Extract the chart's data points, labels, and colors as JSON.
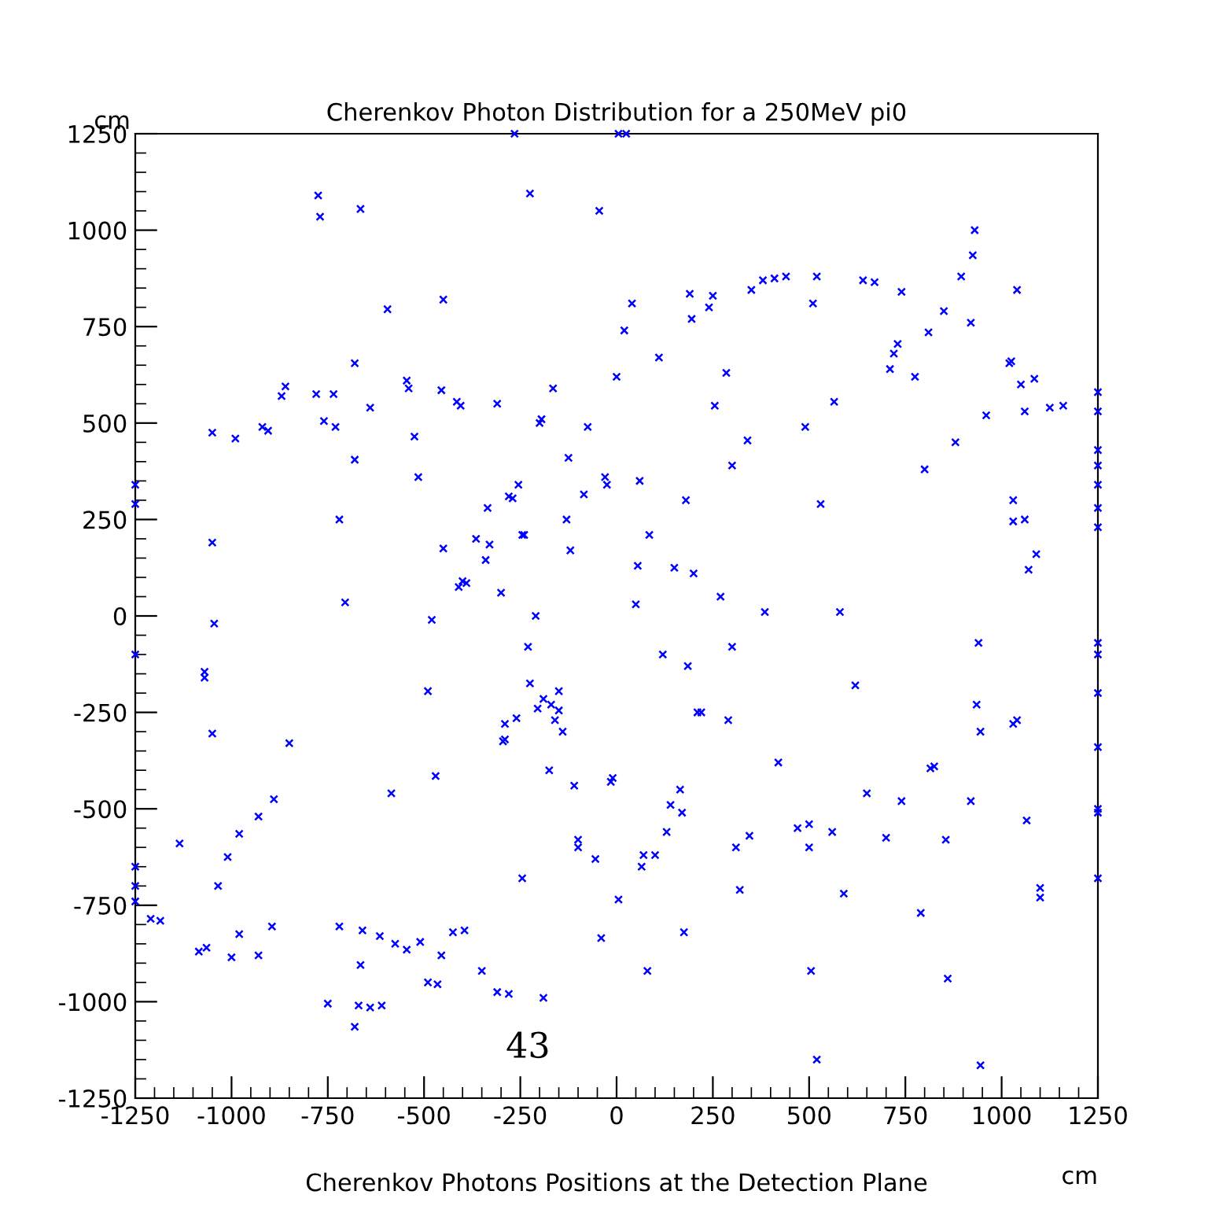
{
  "chart_data": {
    "type": "scatter",
    "title": "Cherenkov Photon Distribution for a 250MeV pi0",
    "xlabel": "Cherenkov Photons Positions at the Detection Plane",
    "ylabel": "cm",
    "annotations": [
      "cm",
      "43"
    ],
    "marker": "cross",
    "grid": false,
    "legend": false,
    "xlim": [
      -1250,
      1250
    ],
    "ylim": [
      -1250,
      1250
    ],
    "xticks": [
      -1250,
      -1000,
      -750,
      -500,
      -250,
      0,
      250,
      500,
      750,
      1000,
      1250
    ],
    "yticks": [
      -1250,
      -1000,
      -750,
      -500,
      -250,
      0,
      250,
      500,
      750,
      1000,
      1250
    ],
    "series": [
      {
        "color": "#0000ff",
        "x": [
          -775,
          -770,
          -665,
          -595,
          -450,
          -225,
          -45,
          -545,
          -540,
          -525,
          -515,
          -455,
          -415,
          -405,
          -860,
          -870,
          -920,
          -905,
          -990,
          -1050,
          -780,
          -760,
          -735,
          -730,
          -680,
          -680,
          -640,
          -720,
          -705,
          -1050,
          -1045,
          -1050,
          -1070,
          -1070,
          -1035,
          -1010,
          -980,
          -930,
          -890,
          -850,
          -1135,
          -1085,
          -1065,
          -1000,
          -980,
          -930,
          -895,
          -1210,
          -1185,
          -750,
          -720,
          -680,
          -670,
          -660,
          -665,
          -640,
          -615,
          -610,
          -575,
          -545,
          -510,
          -490,
          -465,
          -455,
          -425,
          -395,
          -350,
          -310,
          -280,
          -245,
          -190,
          -585,
          -490,
          -480,
          -470,
          -450,
          -410,
          -400,
          -390,
          -365,
          -340,
          -335,
          -330,
          -310,
          -300,
          -290,
          -290,
          -295,
          -280,
          -270,
          -260,
          -255,
          -245,
          -240,
          -230,
          -225,
          -210,
          -205,
          -200,
          -195,
          -190,
          -175,
          -170,
          -165,
          -160,
          -150,
          -150,
          -140,
          -130,
          -125,
          -120,
          -110,
          -100,
          -100,
          -85,
          -75,
          -55,
          -40,
          -30,
          -25,
          -15,
          -10,
          0,
          5,
          20,
          40,
          50,
          55,
          60,
          65,
          70,
          80,
          85,
          100,
          110,
          120,
          130,
          140,
          150,
          165,
          170,
          175,
          180,
          185,
          190,
          195,
          200,
          210,
          220,
          240,
          250,
          255,
          270,
          285,
          290,
          300,
          300,
          310,
          320,
          340,
          345,
          350,
          380,
          385,
          410,
          420,
          440,
          470,
          490,
          500,
          500,
          505,
          510,
          520,
          520,
          530,
          560,
          565,
          580,
          590,
          620,
          640,
          650,
          670,
          700,
          710,
          720,
          730,
          740,
          740,
          775,
          790,
          800,
          810,
          815,
          825,
          850,
          855,
          860,
          880,
          895,
          920,
          920,
          925,
          930,
          935,
          940,
          945,
          945,
          960,
          1020,
          1025,
          1030,
          1030,
          1030,
          1040,
          1040,
          1050,
          1060,
          1060,
          1065,
          1070,
          1085,
          1090,
          1100,
          1100,
          1125,
          1160,
          1250,
          1250,
          1250,
          1250,
          1250,
          1250,
          1250,
          1250,
          1250,
          1250,
          1250,
          1250,
          1250,
          1250,
          -1250,
          -1250,
          -1250,
          -1250,
          -1250,
          -1250,
          -265,
          5,
          25
        ],
        "values": [
          1090,
          1035,
          1055,
          795,
          820,
          1095,
          1050,
          610,
          590,
          465,
          360,
          585,
          555,
          545,
          595,
          570,
          490,
          480,
          460,
          475,
          575,
          505,
          575,
          490,
          655,
          405,
          540,
          250,
          35,
          190,
          -20,
          -305,
          -145,
          -160,
          -700,
          -625,
          -565,
          -520,
          -475,
          -330,
          -590,
          -870,
          -860,
          -885,
          -825,
          -880,
          -805,
          -785,
          -790,
          -1005,
          -805,
          -1065,
          -1010,
          -815,
          -905,
          -1015,
          -830,
          -1010,
          -850,
          -865,
          -845,
          -950,
          -955,
          -880,
          -820,
          -815,
          -920,
          -975,
          -980,
          -680,
          -990,
          -460,
          -195,
          -10,
          -415,
          175,
          75,
          90,
          85,
          200,
          145,
          280,
          185,
          550,
          60,
          -280,
          -320,
          -325,
          310,
          305,
          -265,
          340,
          210,
          210,
          -80,
          -175,
          0,
          -240,
          500,
          510,
          -215,
          -400,
          -230,
          590,
          -270,
          -245,
          -195,
          -300,
          250,
          410,
          170,
          -440,
          -580,
          -600,
          315,
          490,
          -630,
          -835,
          360,
          340,
          -430,
          -420,
          620,
          -735,
          740,
          810,
          30,
          130,
          350,
          -650,
          -620,
          -920,
          210,
          -620,
          670,
          -100,
          -560,
          -490,
          125,
          -450,
          -510,
          -820,
          300,
          -130,
          835,
          770,
          110,
          -250,
          -250,
          800,
          830,
          545,
          50,
          630,
          -270,
          -80,
          390,
          -600,
          -710,
          455,
          -570,
          845,
          870,
          10,
          875,
          -380,
          880,
          -550,
          490,
          -540,
          -600,
          -920,
          810,
          -1150,
          880,
          290,
          -560,
          555,
          10,
          -720,
          -180,
          870,
          -460,
          865,
          -575,
          640,
          680,
          705,
          -480,
          840,
          620,
          -770,
          380,
          735,
          -395,
          -390,
          790,
          -580,
          -940,
          450,
          880,
          -480,
          760,
          935,
          1000,
          -230,
          -70,
          -1165,
          -300,
          520,
          655,
          660,
          300,
          245,
          -280,
          -270,
          845,
          600,
          530,
          250,
          -530,
          120,
          615,
          160,
          -730,
          -705,
          540,
          545,
          580,
          530,
          430,
          390,
          340,
          280,
          230,
          -70,
          -100,
          -200,
          -340,
          -500,
          -510,
          -680,
          340,
          290,
          -100,
          -650,
          -700,
          -740,
          1250,
          1250,
          1250
        ]
      }
    ]
  }
}
